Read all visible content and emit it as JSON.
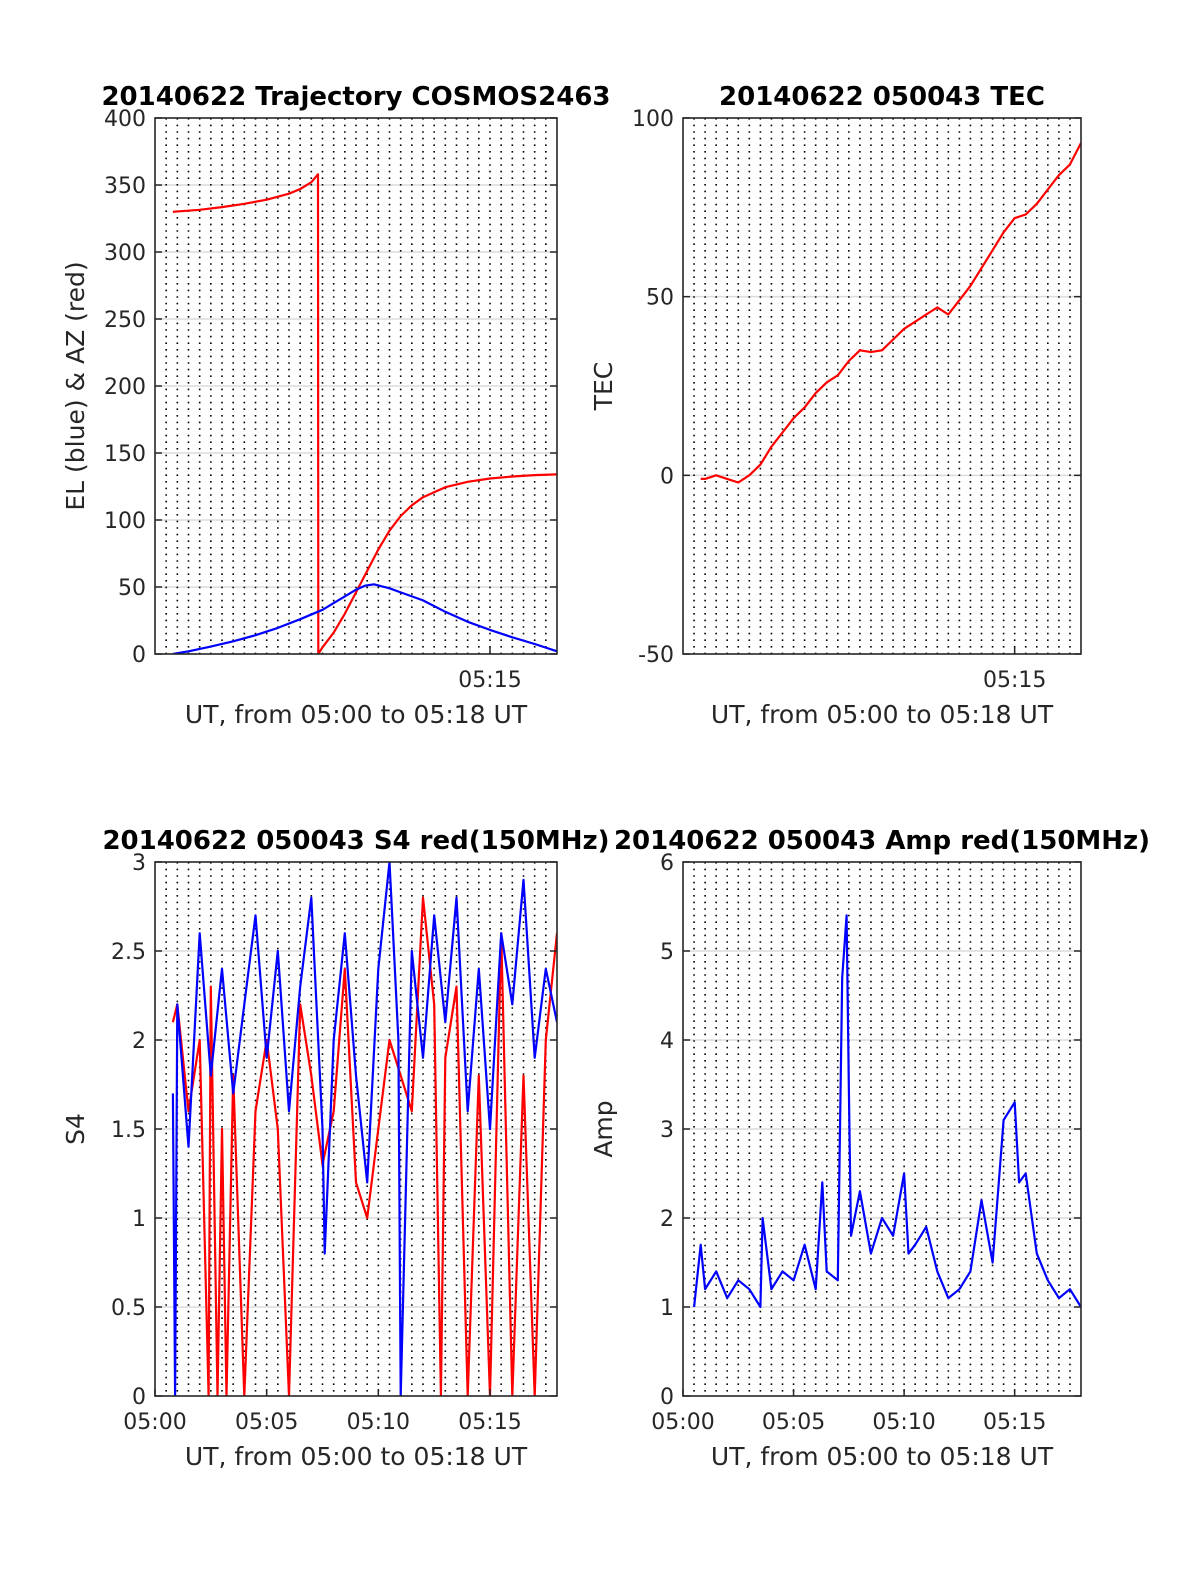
{
  "chart_data": [
    {
      "type": "line",
      "title": "20140622 Trajectory COSMOS2463",
      "xlabel": "UT, from 05:00 to 05:18 UT",
      "ylabel": "EL (blue) & AZ (red)",
      "xlim": [
        0,
        18
      ],
      "ylim": [
        0,
        400
      ],
      "xtick_labels": [
        {
          "t": 15,
          "label": "05:15"
        }
      ],
      "ytick_labels": [
        "0",
        "50",
        "100",
        "150",
        "200",
        "250",
        "300",
        "350",
        "400"
      ],
      "grid": true,
      "series": [
        {
          "color": "#ff0000",
          "x": [
            0.8,
            2,
            3,
            4,
            5,
            6,
            6.5,
            7,
            7.3,
            7.31,
            7.5,
            8,
            8.5,
            9,
            9.5,
            10,
            10.5,
            11,
            11.5,
            12,
            13,
            14,
            15,
            16,
            17,
            18
          ],
          "y": [
            330,
            331.5,
            333.5,
            336,
            339,
            343.5,
            347,
            352,
            358,
            0,
            5,
            16,
            30,
            46,
            62,
            78,
            92,
            103,
            111,
            117,
            124.5,
            128.5,
            131,
            132.5,
            133.5,
            134
          ]
        },
        {
          "color": "#0000ff",
          "x": [
            0.8,
            1.5,
            2.5,
            3.5,
            4.5,
            5.5,
            6.5,
            7.5,
            8,
            8.5,
            9,
            9.4,
            9.8,
            10.5,
            11,
            12,
            13,
            14,
            15,
            16,
            17,
            18
          ],
          "y": [
            0,
            2,
            5.5,
            9.5,
            14,
            19.5,
            26,
            33,
            38,
            43,
            48,
            51,
            52,
            49,
            46,
            40,
            31.5,
            24,
            18,
            12.5,
            7.5,
            2
          ]
        }
      ]
    },
    {
      "type": "line",
      "title": "20140622 050043 TEC",
      "xlabel": "UT, from 05:00 to 05:18 UT",
      "ylabel": "TEC",
      "xlim": [
        0,
        18
      ],
      "ylim": [
        -50,
        100
      ],
      "xtick_labels": [
        {
          "t": 15,
          "label": "05:15"
        }
      ],
      "ytick_labels": [
        "-50",
        "0",
        "50",
        "100"
      ],
      "grid": true,
      "series": [
        {
          "color": "#ff0000",
          "x": [
            0.8,
            1,
            1.5,
            2,
            2.5,
            3,
            3.5,
            4,
            4.5,
            5,
            5.5,
            6,
            6.5,
            7,
            7.5,
            8,
            8.5,
            9,
            9.5,
            10,
            10.5,
            11,
            11.5,
            12,
            12.5,
            13,
            13.5,
            14,
            14.5,
            15,
            15.5,
            16,
            16.5,
            17,
            17.5,
            18
          ],
          "y": [
            -1,
            -1,
            0,
            -1,
            -2,
            0,
            3,
            8,
            12,
            16,
            19,
            23,
            26,
            28,
            32,
            35,
            34.5,
            35,
            38,
            41,
            43,
            45,
            47,
            45,
            49,
            53,
            58,
            63,
            68,
            72,
            73,
            76,
            80,
            84,
            87,
            93
          ]
        }
      ]
    },
    {
      "type": "line",
      "title": "20140622 050043 S4 red(150MHz)",
      "xlabel": "UT, from 05:00 to 05:18 UT",
      "ylabel": "S4",
      "xlim": [
        0,
        18
      ],
      "ylim": [
        0,
        3
      ],
      "xtick_labels": [
        {
          "t": 0,
          "label": "05:00"
        },
        {
          "t": 5,
          "label": "05:05"
        },
        {
          "t": 10,
          "label": "05:10"
        },
        {
          "t": 15,
          "label": "05:15"
        }
      ],
      "ytick_labels": [
        "0",
        "0.5",
        "1",
        "1.5",
        "2",
        "2.5",
        "3"
      ],
      "grid": true,
      "series": [
        {
          "color": "#ff0000",
          "x": [
            0.8,
            1,
            1.5,
            2,
            2.4,
            2.5,
            2.8,
            3,
            3.2,
            3.5,
            4,
            4.5,
            5,
            5.5,
            6,
            6.5,
            7,
            7.5,
            8,
            8.5,
            9,
            9.5,
            10,
            10.5,
            11,
            11.5,
            12,
            12.5,
            12.8,
            13,
            13.5,
            14,
            14.5,
            15,
            15.5,
            16,
            16.5,
            17,
            17.5,
            18
          ],
          "y": [
            2.1,
            2.2,
            1.6,
            2.0,
            0,
            2.3,
            0,
            1.5,
            0,
            1.8,
            0,
            1.6,
            2.0,
            1.5,
            0,
            2.2,
            1.8,
            1.3,
            1.6,
            2.4,
            1.2,
            1.0,
            1.5,
            2.0,
            1.8,
            1.6,
            2.8,
            2.2,
            0,
            1.9,
            2.3,
            0,
            1.8,
            0,
            2.6,
            0,
            1.8,
            0,
            2.0,
            2.6
          ]
        },
        {
          "color": "#0000ff",
          "x": [
            0.8,
            0.9,
            1.0,
            1.5,
            2,
            2.5,
            3,
            3.5,
            4,
            4.5,
            5,
            5.5,
            6,
            6.5,
            7,
            7.5,
            7.6,
            8,
            8.5,
            9,
            9.5,
            10,
            10.5,
            10.9,
            11,
            11.5,
            12,
            12.5,
            13,
            13.5,
            14,
            14.5,
            15,
            15.5,
            16,
            16.5,
            17,
            17.5,
            18
          ],
          "y": [
            1.7,
            0,
            2.2,
            1.4,
            2.6,
            1.8,
            2.4,
            1.7,
            2.2,
            2.7,
            1.9,
            2.5,
            1.6,
            2.3,
            2.8,
            1.5,
            0.8,
            2.0,
            2.6,
            1.8,
            1.2,
            2.4,
            3.0,
            2.0,
            0,
            2.5,
            1.9,
            2.7,
            2.1,
            2.8,
            1.6,
            2.4,
            1.5,
            2.6,
            2.2,
            2.9,
            1.9,
            2.4,
            2.1
          ]
        }
      ]
    },
    {
      "type": "line",
      "title": "20140622 050043 Amp red(150MHz)",
      "xlabel": "UT, from 05:00 to 05:18 UT",
      "ylabel": "Amp",
      "xlim": [
        0,
        18
      ],
      "ylim": [
        0,
        6
      ],
      "xtick_labels": [
        {
          "t": 0,
          "label": "05:00"
        },
        {
          "t": 5,
          "label": "05:05"
        },
        {
          "t": 10,
          "label": "05:10"
        },
        {
          "t": 15,
          "label": "05:15"
        }
      ],
      "ytick_labels": [
        "0",
        "1",
        "2",
        "3",
        "4",
        "5",
        "6"
      ],
      "grid": true,
      "series": [
        {
          "color": "#0000ff",
          "x": [
            0.5,
            0.8,
            1.0,
            1.5,
            2,
            2.5,
            3,
            3.5,
            3.6,
            4,
            4.5,
            5,
            5.5,
            6,
            6.3,
            6.5,
            7,
            7.2,
            7.4,
            7.5,
            7.6,
            8,
            8.5,
            9,
            9.5,
            10,
            10.2,
            10.5,
            11,
            11.5,
            12,
            12.5,
            13,
            13.5,
            14,
            14.5,
            15,
            15.2,
            15.5,
            16,
            16.5,
            17,
            17.5,
            18
          ],
          "y": [
            1.0,
            1.7,
            1.2,
            1.4,
            1.1,
            1.3,
            1.2,
            1.0,
            2.0,
            1.2,
            1.4,
            1.3,
            1.7,
            1.2,
            2.4,
            1.4,
            1.3,
            4.7,
            5.4,
            3.5,
            1.8,
            2.3,
            1.6,
            2.0,
            1.8,
            2.5,
            1.6,
            1.7,
            1.9,
            1.4,
            1.1,
            1.2,
            1.4,
            2.2,
            1.5,
            3.1,
            3.3,
            2.4,
            2.5,
            1.6,
            1.3,
            1.1,
            1.2,
            1.0
          ]
        }
      ]
    }
  ]
}
